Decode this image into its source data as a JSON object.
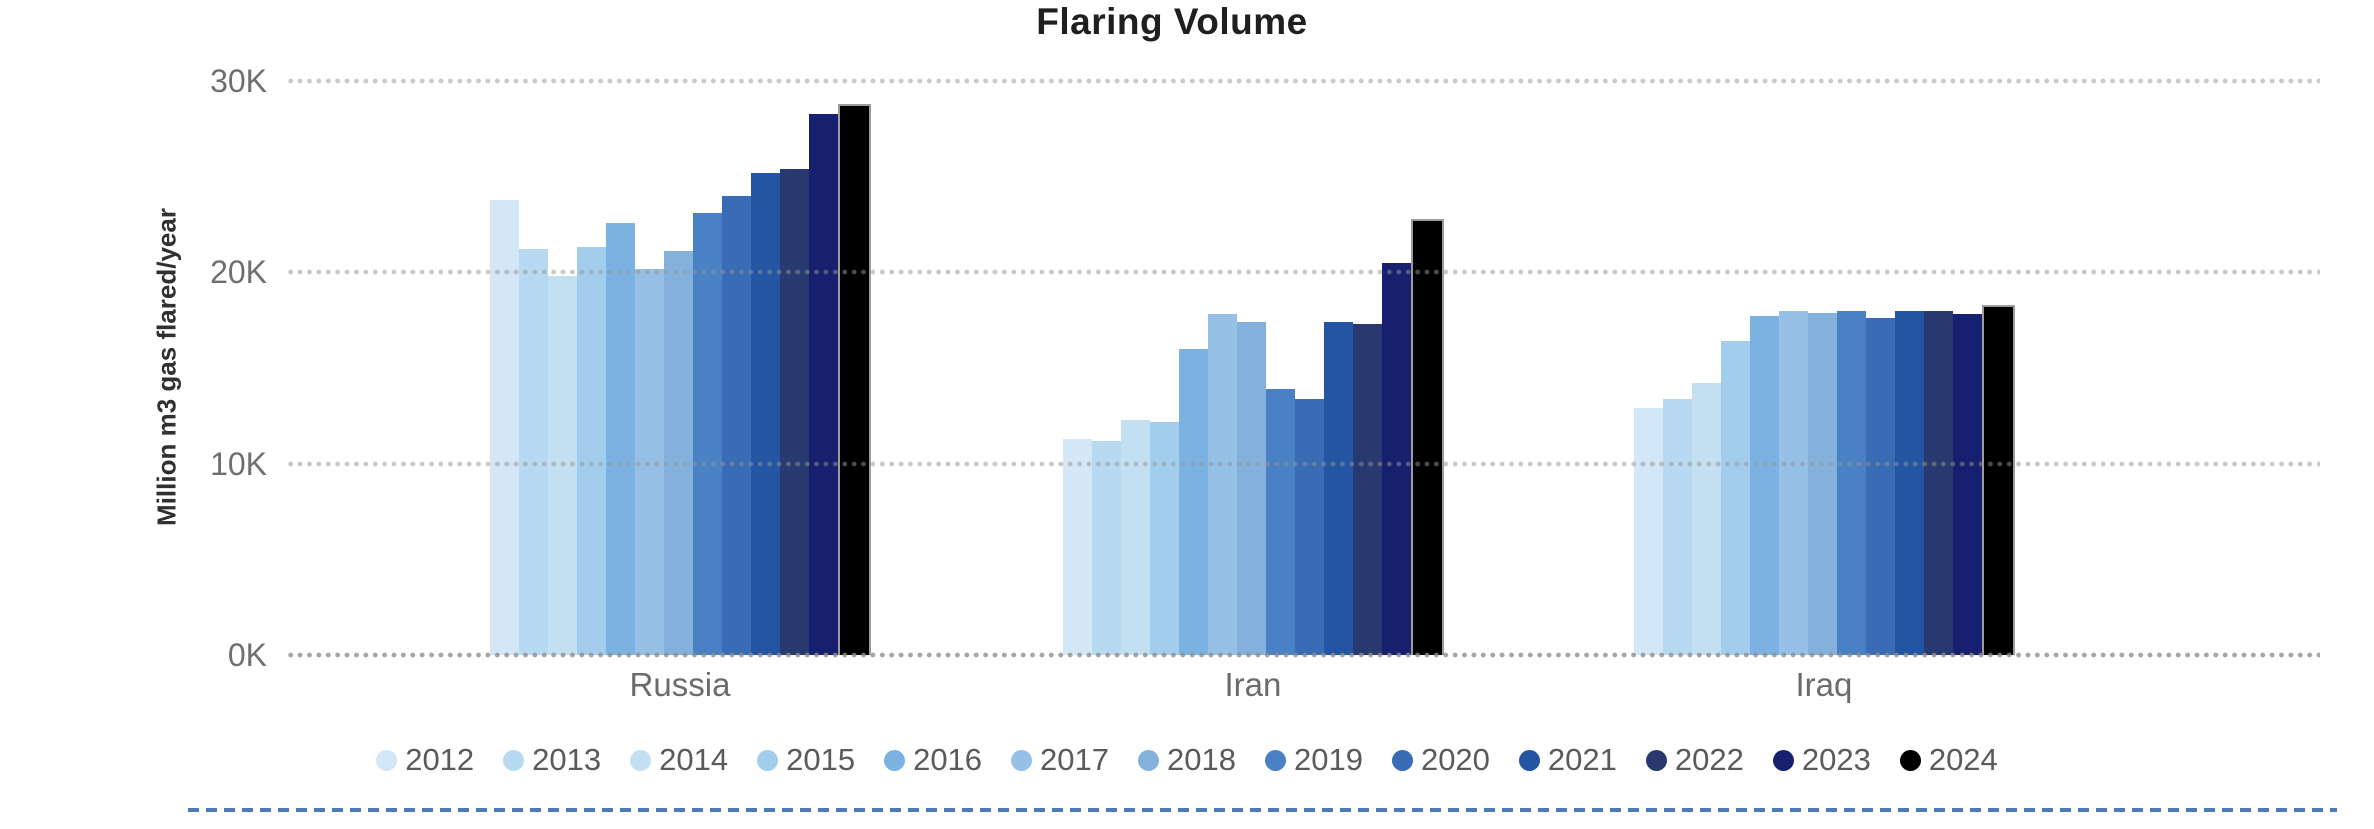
{
  "chart_data": {
    "type": "bar",
    "grouped": true,
    "title": "Flaring Volume",
    "categories": [
      "Russia",
      "Iran",
      "Iraq"
    ],
    "unit": "thousand million m3 gas flared per year (axis shown in K)",
    "y_axis": {
      "label": "Million m3 gas flared/year",
      "max": 30,
      "ticks": [
        {
          "label": "30K",
          "value": 30
        },
        {
          "label": "20K",
          "value": 20
        },
        {
          "label": "10K",
          "value": 10
        },
        {
          "label": "0K",
          "value": 0
        }
      ],
      "grid": "dotted"
    },
    "legend_position": "bottom",
    "series": [
      {
        "name": "2012",
        "color": "#d3e7f6",
        "values": [
          23.8,
          11.3,
          12.9
        ]
      },
      {
        "name": "2013",
        "color": "#b7daf2",
        "values": [
          21.2,
          11.2,
          13.4
        ]
      },
      {
        "name": "2014",
        "color": "#c3dff2",
        "values": [
          19.8,
          12.3,
          14.2
        ]
      },
      {
        "name": "2015",
        "color": "#a3cdec",
        "values": [
          21.3,
          12.2,
          16.4
        ]
      },
      {
        "name": "2016",
        "color": "#7cb2e1",
        "values": [
          22.6,
          16.0,
          17.7
        ]
      },
      {
        "name": "2017",
        "color": "#97c0e6",
        "values": [
          20.2,
          17.8,
          18.0
        ]
      },
      {
        "name": "2018",
        "color": "#84b1dc",
        "values": [
          21.1,
          17.4,
          17.9
        ]
      },
      {
        "name": "2019",
        "color": "#4a80c4",
        "values": [
          23.1,
          13.9,
          18.0
        ]
      },
      {
        "name": "2020",
        "color": "#3a6cb5",
        "values": [
          24.0,
          13.4,
          17.6
        ]
      },
      {
        "name": "2021",
        "color": "#2355a3",
        "values": [
          25.2,
          17.4,
          18.0
        ]
      },
      {
        "name": "2022",
        "color": "#28396f",
        "values": [
          25.4,
          17.3,
          18.0
        ]
      },
      {
        "name": "2023",
        "color": "#16206e",
        "values": [
          28.3,
          20.5,
          17.8
        ]
      },
      {
        "name": "2024",
        "color": "#000000",
        "values": [
          28.8,
          22.8,
          18.3
        ]
      }
    ]
  },
  "colors": {
    "background": "#ffffff",
    "title_text": "#1f1f1f",
    "axis_tick_text": "#6f6f6f",
    "category_text": "#6b6b6b",
    "legend_text": "#5a5a5a",
    "grid_dots": "#c2c2c2",
    "black_bar_outline": "#9c9c9c",
    "separator_dashed_line": "#5079b9"
  }
}
